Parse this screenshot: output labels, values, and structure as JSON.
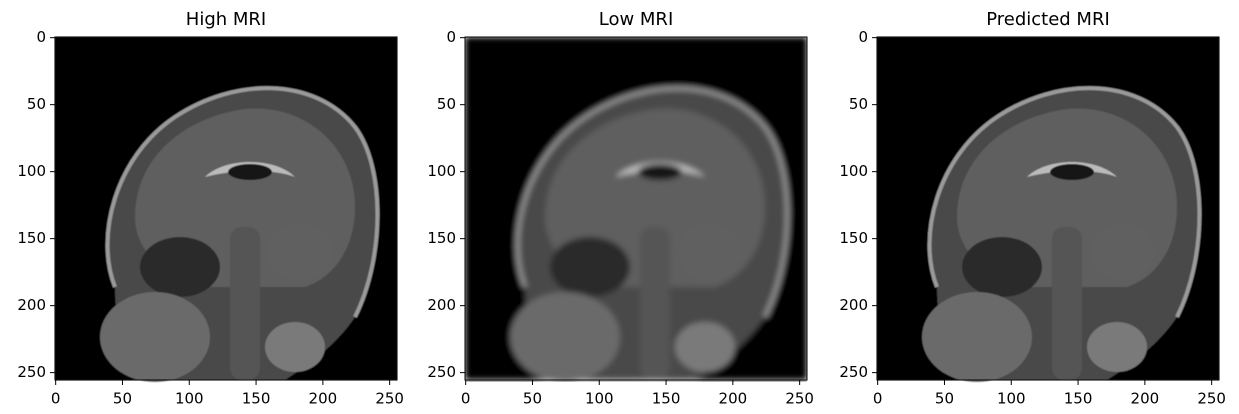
{
  "chart_data": [
    {
      "type": "image",
      "title": "High MRI",
      "xlim": [
        -0.5,
        255.5
      ],
      "ylim": [
        255.5,
        -0.5
      ],
      "xticks": [
        0,
        50,
        100,
        150,
        200,
        250
      ],
      "yticks": [
        0,
        50,
        100,
        150,
        200,
        250
      ]
    },
    {
      "type": "image",
      "title": "Low MRI",
      "xlim": [
        -0.5,
        255.5
      ],
      "ylim": [
        255.5,
        -0.5
      ],
      "xticks": [
        0,
        50,
        100,
        150,
        200,
        250
      ],
      "yticks": [
        0,
        50,
        100,
        150,
        200,
        250
      ]
    },
    {
      "type": "image",
      "title": "Predicted MRI",
      "xlim": [
        -0.5,
        255.5
      ],
      "ylim": [
        255.5,
        -0.5
      ],
      "xticks": [
        0,
        50,
        100,
        150,
        200,
        250
      ],
      "yticks": [
        0,
        50,
        100,
        150,
        200,
        250
      ]
    }
  ]
}
